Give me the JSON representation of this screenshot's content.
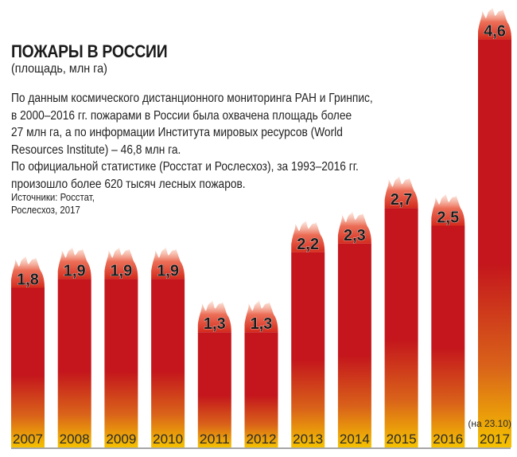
{
  "header": {
    "title": "ПОЖАРЫ В РОССИИ",
    "subtitle": "(площадь, млн га)"
  },
  "description": {
    "lines": [
      "По данным космического дистанционного мониторинга РАН и Гринпис,",
      "в 2000–2016 гг. пожарами в России была охвачена площадь более",
      "27 млн га, а по информации Института мировых ресурсов (World",
      "Resources Institute) – 46,8 млн га.",
      "По официальной статистике (Росстат и Рослесхоз), за 1993–2016 гг.",
      "произошло более 620 тысяч лесных пожаров."
    ]
  },
  "source": {
    "lines": [
      "Источники: Росстат,",
      "Рослесхоз, 2017"
    ]
  },
  "colors": {
    "bar_top": "#c4161c",
    "bar_bottom": "#f5c200",
    "bar_mid": "#d9621a",
    "flame": "#e8553a",
    "axis": "#888888",
    "label": "#1a1a1a"
  },
  "chart_data": {
    "type": "bar",
    "title": "ПОЖАРЫ В РОССИИ",
    "subtitle": "(площадь, млн га)",
    "xlabel": "",
    "ylabel": "",
    "categories": [
      "2007",
      "2008",
      "2009",
      "2010",
      "2011",
      "2012",
      "2013",
      "2014",
      "2015",
      "2016",
      "2017"
    ],
    "values": [
      1.8,
      1.9,
      1.9,
      1.9,
      1.3,
      1.3,
      2.2,
      2.3,
      2.7,
      2.5,
      4.6
    ],
    "value_labels": [
      "1,8",
      "1,9",
      "1,9",
      "1,9",
      "1,3",
      "1,3",
      "2,2",
      "2,3",
      "2,7",
      "2,5",
      "4,6"
    ],
    "annotations": [
      {
        "category": "2017",
        "text": "(на 23.10)"
      }
    ],
    "ylim": [
      0,
      4.6
    ],
    "grid": false,
    "legend": "none"
  }
}
